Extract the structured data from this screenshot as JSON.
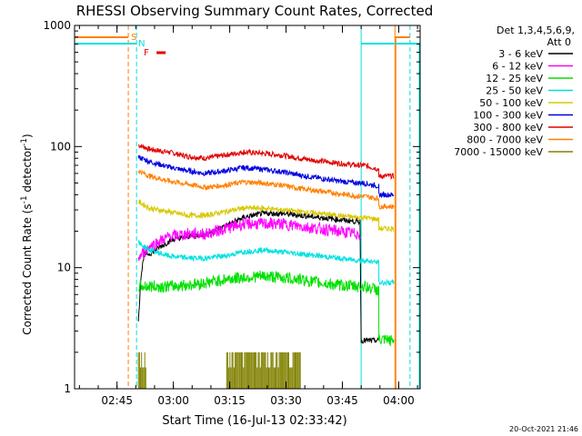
{
  "chart_data": {
    "type": "line",
    "title": "RHESSI Observing Summary Count Rates, Corrected",
    "xlabel": "Start Time (16-Jul-13 02:33:42)",
    "ylabel_main": "Corrected Count Rate (s",
    "ylabel_sup": "-1",
    "ylabel_tail": " detector",
    "ylabel_sup2": "-1",
    "ylabel_end": ")",
    "y_scale": "log",
    "ylim": [
      1,
      1000
    ],
    "y_ticks": [
      {
        "value": 1,
        "label": "1"
      },
      {
        "value": 10,
        "label": "10"
      },
      {
        "value": 100,
        "label": "100"
      },
      {
        "value": 1000,
        "label": "1000"
      }
    ],
    "x_range_min": [
      0,
      92
    ],
    "x_ticks": [
      {
        "value": 11.3,
        "label": "02:45"
      },
      {
        "value": 26.3,
        "label": "03:00"
      },
      {
        "value": 41.3,
        "label": "03:15"
      },
      {
        "value": 56.3,
        "label": "03:30"
      },
      {
        "value": 71.3,
        "label": "03:45"
      },
      {
        "value": 86.3,
        "label": "04:00"
      }
    ],
    "legend": {
      "header1": "Det 1,3,4,5,6,9,",
      "header2": "Att 0",
      "entries": [
        {
          "label": "3 - 6 keV",
          "color": "#000000"
        },
        {
          "label": "6 - 12 keV",
          "color": "#ff00ff"
        },
        {
          "label": "12 - 25 keV",
          "color": "#00e000"
        },
        {
          "label": "25 - 50 keV",
          "color": "#00e0e0"
        },
        {
          "label": "50 - 100 keV",
          "color": "#d8c800"
        },
        {
          "label": "100 - 300 keV",
          "color": "#0000e0"
        },
        {
          "label": "300 - 800 keV",
          "color": "#e00000"
        },
        {
          "label": "800 - 7000 keV",
          "color": "#ff8000"
        },
        {
          "label": "7000 - 15000 keV",
          "color": "#808000"
        }
      ]
    },
    "series": [
      {
        "name": "300 - 800 keV",
        "color": "#e00000",
        "points": [
          [
            17,
            103
          ],
          [
            20,
            95
          ],
          [
            25,
            90
          ],
          [
            30,
            83
          ],
          [
            35,
            80
          ],
          [
            40,
            85
          ],
          [
            45,
            90
          ],
          [
            50,
            88
          ],
          [
            55,
            85
          ],
          [
            60,
            80
          ],
          [
            65,
            76
          ],
          [
            70,
            73
          ],
          [
            75,
            70
          ],
          [
            77,
            70
          ],
          [
            81,
            65
          ],
          [
            81,
            57
          ],
          [
            85,
            57
          ]
        ]
      },
      {
        "name": "100 - 300 keV",
        "color": "#0000e0",
        "points": [
          [
            17,
            82
          ],
          [
            20,
            75
          ],
          [
            25,
            68
          ],
          [
            30,
            63
          ],
          [
            35,
            60
          ],
          [
            40,
            63
          ],
          [
            45,
            67
          ],
          [
            50,
            65
          ],
          [
            55,
            62
          ],
          [
            60,
            58
          ],
          [
            65,
            55
          ],
          [
            70,
            52
          ],
          [
            75,
            50
          ],
          [
            77,
            50
          ],
          [
            81,
            47
          ],
          [
            81,
            40
          ],
          [
            85,
            40
          ]
        ]
      },
      {
        "name": "800 - 7000 keV",
        "color": "#ff8000",
        "points": [
          [
            17,
            63
          ],
          [
            20,
            57
          ],
          [
            25,
            52
          ],
          [
            30,
            49
          ],
          [
            35,
            46
          ],
          [
            40,
            48
          ],
          [
            45,
            51
          ],
          [
            50,
            50
          ],
          [
            55,
            48
          ],
          [
            60,
            45
          ],
          [
            65,
            43
          ],
          [
            70,
            41
          ],
          [
            75,
            39
          ],
          [
            77,
            39
          ],
          [
            81,
            37
          ],
          [
            81,
            32
          ],
          [
            85,
            32
          ]
        ]
      },
      {
        "name": "50 - 100 keV",
        "color": "#d8c800",
        "points": [
          [
            17,
            35
          ],
          [
            20,
            31
          ],
          [
            25,
            29
          ],
          [
            30,
            27
          ],
          [
            35,
            27
          ],
          [
            40,
            29
          ],
          [
            45,
            31
          ],
          [
            50,
            31
          ],
          [
            55,
            30
          ],
          [
            60,
            29
          ],
          [
            65,
            28
          ],
          [
            70,
            27
          ],
          [
            75,
            26
          ],
          [
            77,
            26
          ],
          [
            81,
            25
          ],
          [
            81,
            21
          ],
          [
            85,
            21
          ]
        ]
      },
      {
        "name": "3 - 6 keV",
        "color": "#000000",
        "points": [
          [
            17,
            3.5
          ],
          [
            17.6,
            8
          ],
          [
            18.5,
            13
          ],
          [
            20,
            13
          ],
          [
            23,
            15
          ],
          [
            26,
            17
          ],
          [
            30,
            18
          ],
          [
            35,
            19
          ],
          [
            40,
            22
          ],
          [
            45,
            26
          ],
          [
            50,
            28
          ],
          [
            55,
            28
          ],
          [
            60,
            27
          ],
          [
            65,
            26
          ],
          [
            70,
            25
          ],
          [
            75,
            24
          ],
          [
            76,
            24
          ],
          [
            76.3,
            2.5
          ],
          [
            81,
            2.5
          ]
        ]
      },
      {
        "name": "6 - 12 keV",
        "color": "#ff00ff",
        "points": [
          [
            17,
            12
          ],
          [
            20,
            15
          ],
          [
            25,
            18
          ],
          [
            30,
            19
          ],
          [
            35,
            19
          ],
          [
            40,
            21
          ],
          [
            45,
            23
          ],
          [
            50,
            23
          ],
          [
            55,
            23
          ],
          [
            60,
            22
          ],
          [
            65,
            21
          ],
          [
            70,
            20
          ],
          [
            75,
            19
          ],
          [
            76,
            19
          ]
        ]
      },
      {
        "name": "25 - 50 keV",
        "color": "#00e0e0",
        "points": [
          [
            17,
            16
          ],
          [
            20,
            14
          ],
          [
            25,
            12.5
          ],
          [
            30,
            12
          ],
          [
            35,
            12
          ],
          [
            40,
            12.5
          ],
          [
            45,
            13.5
          ],
          [
            50,
            14
          ],
          [
            55,
            13.5
          ],
          [
            60,
            13
          ],
          [
            65,
            12.5
          ],
          [
            70,
            12
          ],
          [
            75,
            11.5
          ],
          [
            77,
            11.5
          ],
          [
            81,
            11
          ],
          [
            81,
            7.5
          ],
          [
            85,
            7.5
          ]
        ]
      },
      {
        "name": "12 - 25 keV",
        "color": "#00e000",
        "points": [
          [
            17,
            7
          ],
          [
            20,
            7
          ],
          [
            25,
            7
          ],
          [
            30,
            7.2
          ],
          [
            35,
            7.5
          ],
          [
            40,
            8
          ],
          [
            45,
            8.3
          ],
          [
            50,
            8.5
          ],
          [
            55,
            8.3
          ],
          [
            60,
            8
          ],
          [
            65,
            7.5
          ],
          [
            70,
            7.2
          ],
          [
            75,
            7
          ],
          [
            77,
            7
          ],
          [
            81,
            6.5
          ],
          [
            81,
            2.5
          ],
          [
            85,
            2.5
          ]
        ]
      },
      {
        "name": "7000 - 15000 keV",
        "color": "#808000",
        "points": [
          [
            17,
            1.5
          ],
          [
            19,
            1.5
          ],
          [
            40.5,
            1.6
          ],
          [
            60.3,
            1.6
          ]
        ]
      }
    ],
    "vlines": [
      {
        "x": 14.3,
        "color": "#ff8000",
        "dash": true
      },
      {
        "x": 16.5,
        "color": "#00e0e0",
        "dash": true
      },
      {
        "x": 76.3,
        "color": "#00e0e0",
        "dash": false
      },
      {
        "x": 85.3,
        "color": "#ff8000",
        "dash": false
      },
      {
        "x": 89.3,
        "color": "#00e0e0",
        "dash": true
      }
    ],
    "flags": {
      "s_label": "S",
      "n_label": "N",
      "f_label": "F"
    },
    "footer_timestamp": "20-Oct-2021 21:46"
  }
}
